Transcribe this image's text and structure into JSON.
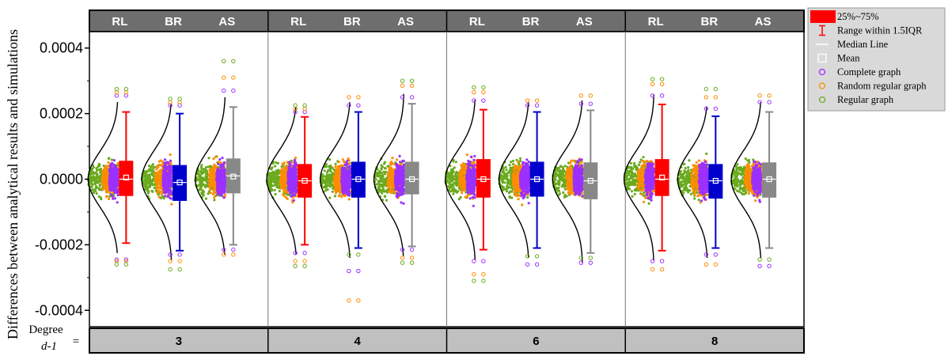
{
  "chart_data": {
    "type": "box",
    "ylabel": "Differences between analytical results and simulations",
    "x_title_line1": "Degree",
    "x_title_line2": "d-1",
    "x_title_eq": "=",
    "ylim": [
      -0.00045,
      0.00045
    ],
    "yticks": [
      {
        "value": 0.0004,
        "label": "0.0004"
      },
      {
        "value": 0.0002,
        "label": "0.0002"
      },
      {
        "value": 0.0,
        "label": "0.0000"
      },
      {
        "value": -0.0002,
        "label": "-0.0002"
      },
      {
        "value": -0.0004,
        "label": "-0.0004"
      }
    ],
    "grid": false,
    "legend_position": "right",
    "colors": {
      "RL": "#ff0000",
      "BR": "#0000cc",
      "AS": "#888888",
      "complete": "#9b30ff",
      "random_regular": "#ff8c00",
      "regular": "#6aaa1e",
      "strip_bg": "#6e6e6e",
      "bottom_strip_bg": "#c0c0c0"
    },
    "legend": [
      {
        "key": "box",
        "label": "25%~75%"
      },
      {
        "key": "whisker",
        "label": "Range within 1.5IQR"
      },
      {
        "key": "median",
        "label": "Median Line"
      },
      {
        "key": "mean",
        "label": "Mean"
      },
      {
        "key": "complete",
        "label": "Complete graph"
      },
      {
        "key": "random_regular",
        "label": "Random regular graph"
      },
      {
        "key": "regular",
        "label": "Regular graph"
      }
    ],
    "panels": [
      {
        "degree": "3",
        "groups": [
          {
            "name": "RL",
            "q1": -5e-05,
            "q3": 5.5e-05,
            "median": 0.0,
            "mean": 5e-06,
            "whisker_low": -0.000195,
            "whisker_high": 0.000205,
            "out_high": [
              0.000255,
              0.000265,
              0.000275
            ],
            "out_low": [
              -0.000245,
              -0.00025,
              -0.00026
            ]
          },
          {
            "name": "BR",
            "q1": -6.5e-05,
            "q3": 4.2e-05,
            "median": -1e-05,
            "mean": -1e-05,
            "whisker_low": -0.000218,
            "whisker_high": 0.0002,
            "out_high": [
              0.000225,
              0.000235,
              0.000245
            ],
            "out_low": [
              -0.00023,
              -0.00025,
              -0.000275
            ]
          },
          {
            "name": "AS",
            "q1": -4.2e-05,
            "q3": 6.2e-05,
            "median": 1e-05,
            "mean": 8e-06,
            "whisker_low": -0.0002,
            "whisker_high": 0.00022,
            "out_high": [
              0.00027,
              0.00031,
              0.00036
            ],
            "out_low": [
              -0.000215,
              -0.00023
            ]
          }
        ]
      },
      {
        "degree": "4",
        "groups": [
          {
            "name": "RL",
            "q1": -5.5e-05,
            "q3": 4.5e-05,
            "median": -5e-06,
            "mean": -5e-06,
            "whisker_low": -0.0002,
            "whisker_high": 0.00019,
            "out_high": [
              0.000205,
              0.000215,
              0.000225
            ],
            "out_low": [
              -0.000225,
              -0.00025,
              -0.000265
            ]
          },
          {
            "name": "BR",
            "q1": -5.5e-05,
            "q3": 5.2e-05,
            "median": 0.0,
            "mean": 0.0,
            "whisker_low": -0.00021,
            "whisker_high": 0.000205,
            "out_high": [
              0.000225,
              0.00025
            ],
            "out_low": [
              -0.00023,
              -0.00028,
              -0.00037
            ]
          },
          {
            "name": "AS",
            "q1": -4.5e-05,
            "q3": 5.2e-05,
            "median": 0.0,
            "mean": 0.0,
            "whisker_low": -0.000205,
            "whisker_high": 0.00023,
            "out_high": [
              0.00025,
              0.000285,
              0.0003
            ],
            "out_low": [
              -0.000215,
              -0.00024,
              -0.000255
            ]
          }
        ]
      },
      {
        "degree": "6",
        "groups": [
          {
            "name": "RL",
            "q1": -5.5e-05,
            "q3": 6e-05,
            "median": 0.0,
            "mean": 0.0,
            "whisker_low": -0.000215,
            "whisker_high": 0.000212,
            "out_high": [
              0.00024,
              0.000265,
              0.00028
            ],
            "out_low": [
              -0.00025,
              -0.00029,
              -0.00031
            ]
          },
          {
            "name": "BR",
            "q1": -5.2e-05,
            "q3": 5.2e-05,
            "median": 0.0,
            "mean": 0.0,
            "whisker_low": -0.00021,
            "whisker_high": 0.000205,
            "out_high": [
              0.000225,
              0.00024
            ],
            "out_low": [
              -0.000235,
              -0.00026
            ]
          },
          {
            "name": "AS",
            "q1": -6e-05,
            "q3": 5e-05,
            "median": -5e-06,
            "mean": -5e-06,
            "whisker_low": -0.000225,
            "whisker_high": 0.00021,
            "out_high": [
              0.00023,
              0.000255
            ],
            "out_low": [
              -0.00024,
              -0.000255
            ]
          }
        ]
      },
      {
        "degree": "8",
        "groups": [
          {
            "name": "RL",
            "q1": -5e-05,
            "q3": 6e-05,
            "median": 0.0,
            "mean": 5e-06,
            "whisker_low": -0.000218,
            "whisker_high": 0.000228,
            "out_high": [
              0.000255,
              0.00029,
              0.000305
            ],
            "out_low": [
              -0.00025,
              -0.000275
            ]
          },
          {
            "name": "BR",
            "q1": -5.8e-05,
            "q3": 4.5e-05,
            "median": -5e-06,
            "mean": -5e-06,
            "whisker_low": -0.00021,
            "whisker_high": 0.000192,
            "out_high": [
              0.000215,
              0.00025,
              0.000275
            ],
            "out_low": [
              -0.00023,
              -0.00026
            ]
          },
          {
            "name": "AS",
            "q1": -5.5e-05,
            "q3": 5e-05,
            "median": 0.0,
            "mean": 0.0,
            "whisker_low": -0.00021,
            "whisker_high": 0.000205,
            "out_high": [
              0.000235,
              0.000255
            ],
            "out_low": [
              -0.000245,
              -0.000265
            ]
          }
        ]
      }
    ]
  }
}
